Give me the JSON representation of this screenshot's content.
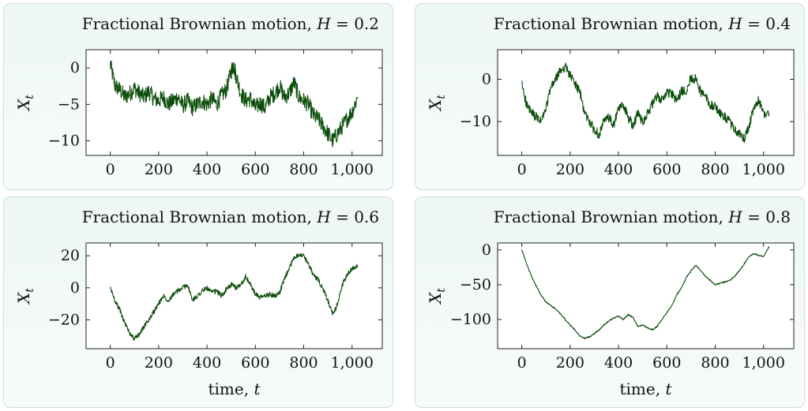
{
  "chart_data": [
    {
      "type": "line",
      "title": "Fractional Brownian motion, H = 0.2",
      "title_prefix": "Fractional Brownian motion, ",
      "title_var": "H",
      "title_eq": " = 0.2",
      "xlabel_text": "",
      "xlabel_var": "",
      "ylabel_base": "X",
      "ylabel_sub": "t",
      "xlim": [
        -100,
        1125
      ],
      "ylim": [
        -12,
        2.5
      ],
      "xticks": [
        0,
        200,
        400,
        600,
        800,
        1000
      ],
      "xtick_labels": [
        "0",
        "200",
        "400",
        "600",
        "800",
        "1,000"
      ],
      "yticks": [
        0,
        -5,
        -10
      ],
      "ytick_labels": [
        "0",
        "−5",
        "−10"
      ],
      "grid": false,
      "color": "#0b4d0b",
      "series": [
        {
          "x": [
            0,
            20,
            40,
            60,
            80,
            100,
            120,
            140,
            160,
            180,
            200,
            220,
            240,
            260,
            280,
            300,
            320,
            340,
            360,
            380,
            400,
            420,
            440,
            460,
            480,
            500,
            510,
            520,
            540,
            560,
            580,
            600,
            620,
            640,
            660,
            680,
            700,
            720,
            740,
            760,
            780,
            800,
            820,
            840,
            860,
            880,
            900,
            920,
            940,
            960,
            980,
            1000,
            1023
          ],
          "y": [
            0.5,
            -2.5,
            -3,
            -4,
            -3.5,
            -2.8,
            -3.5,
            -4,
            -3.2,
            -4.2,
            -4.5,
            -4,
            -5,
            -4.5,
            -4,
            -5.2,
            -4.5,
            -5.5,
            -5,
            -4.5,
            -5,
            -4.2,
            -5,
            -3.8,
            -3,
            -0.5,
            0.5,
            -1,
            -3.5,
            -4.5,
            -4.2,
            -5.5,
            -4.8,
            -5.5,
            -4,
            -3.5,
            -2.5,
            -4,
            -3.5,
            -2,
            -4,
            -4.5,
            -5,
            -6.5,
            -7,
            -8,
            -9,
            -10,
            -9,
            -8,
            -7,
            -6,
            -4
          ]
        }
      ]
    },
    {
      "type": "line",
      "title": "Fractional Brownian motion, H = 0.4",
      "title_prefix": "Fractional Brownian motion, ",
      "title_var": "H",
      "title_eq": " = 0.4",
      "xlabel_text": "",
      "xlabel_var": "",
      "ylabel_base": "X",
      "ylabel_sub": "t",
      "xlim": [
        -100,
        1125
      ],
      "ylim": [
        -18,
        7
      ],
      "xticks": [
        0,
        200,
        400,
        600,
        800,
        1000
      ],
      "xtick_labels": [
        "0",
        "200",
        "400",
        "600",
        "800",
        "1,000"
      ],
      "yticks": [
        0,
        -10
      ],
      "ytick_labels": [
        "0",
        "−10"
      ],
      "grid": false,
      "color": "#0b4d0b",
      "series": [
        {
          "x": [
            0,
            20,
            40,
            60,
            80,
            100,
            120,
            140,
            160,
            180,
            200,
            220,
            240,
            260,
            280,
            300,
            320,
            340,
            360,
            380,
            400,
            420,
            440,
            460,
            480,
            500,
            520,
            540,
            560,
            580,
            600,
            620,
            640,
            660,
            680,
            700,
            720,
            740,
            760,
            780,
            800,
            820,
            840,
            860,
            880,
            900,
            920,
            940,
            960,
            980,
            1000,
            1023
          ],
          "y": [
            -1,
            -6,
            -8,
            -9,
            -10,
            -7,
            -2,
            0,
            2,
            3,
            1,
            -1,
            -3,
            -8,
            -10,
            -12,
            -13,
            -10,
            -9,
            -11,
            -7,
            -6,
            -9,
            -11,
            -8,
            -10,
            -8,
            -6,
            -4,
            -5,
            -3,
            -3.5,
            -5,
            -3,
            -2.5,
            0.5,
            0,
            -3,
            -4,
            -6,
            -6.5,
            -8,
            -9,
            -10,
            -12,
            -13,
            -14,
            -11,
            -7,
            -5,
            -8,
            -8
          ]
        }
      ]
    },
    {
      "type": "line",
      "title": "Fractional Brownian motion, H = 0.6",
      "title_prefix": "Fractional Brownian motion, ",
      "title_var": "H",
      "title_eq": " = 0.6",
      "xlabel_text": "time, ",
      "xlabel_var": "t",
      "ylabel_base": "X",
      "ylabel_sub": "t",
      "xlim": [
        -100,
        1125
      ],
      "ylim": [
        -38,
        28
      ],
      "xticks": [
        0,
        200,
        400,
        600,
        800,
        1000
      ],
      "xtick_labels": [
        "0",
        "200",
        "400",
        "600",
        "800",
        "1,000"
      ],
      "yticks": [
        20,
        0,
        -20
      ],
      "ytick_labels": [
        "20",
        "0",
        "−20"
      ],
      "grid": false,
      "color": "#0b4d0b",
      "series": [
        {
          "x": [
            0,
            20,
            40,
            60,
            80,
            100,
            120,
            140,
            160,
            180,
            200,
            220,
            240,
            260,
            280,
            300,
            320,
            340,
            360,
            380,
            400,
            420,
            440,
            460,
            480,
            500,
            520,
            540,
            560,
            580,
            600,
            620,
            640,
            660,
            680,
            700,
            720,
            740,
            760,
            780,
            800,
            820,
            840,
            860,
            880,
            900,
            920,
            940,
            960,
            980,
            1000,
            1023
          ],
          "y": [
            0,
            -8,
            -14,
            -22,
            -28,
            -32,
            -29,
            -24,
            -20,
            -15,
            -10,
            -5,
            -8,
            -4,
            -2,
            0,
            2,
            -8,
            -5,
            -2,
            0,
            -3,
            -2,
            -5,
            -1,
            2,
            0,
            2,
            7,
            2,
            -4,
            -6,
            -5,
            -4,
            -5,
            -3,
            5,
            12,
            19,
            21,
            20,
            15,
            8,
            5,
            -1,
            -8,
            -17,
            -10,
            2,
            8,
            12,
            14
          ]
        }
      ]
    },
    {
      "type": "line",
      "title": "Fractional Brownian motion, H = 0.8",
      "title_prefix": "Fractional Brownian motion, ",
      "title_var": "H",
      "title_eq": " = 0.8",
      "xlabel_text": "time, ",
      "xlabel_var": "t",
      "ylabel_base": "X",
      "ylabel_sub": "t",
      "xlim": [
        -100,
        1125
      ],
      "ylim": [
        -142,
        10
      ],
      "xticks": [
        0,
        200,
        400,
        600,
        800,
        1000
      ],
      "xtick_labels": [
        "0",
        "200",
        "400",
        "600",
        "800",
        "1,000"
      ],
      "yticks": [
        0,
        -50,
        -100
      ],
      "ytick_labels": [
        "0",
        "−50",
        "−100"
      ],
      "grid": false,
      "color": "#0b4d0b",
      "series": [
        {
          "x": [
            0,
            20,
            40,
            60,
            80,
            100,
            120,
            140,
            160,
            180,
            200,
            220,
            240,
            260,
            280,
            300,
            320,
            340,
            360,
            380,
            400,
            420,
            440,
            460,
            480,
            500,
            520,
            540,
            560,
            580,
            600,
            620,
            640,
            660,
            680,
            700,
            720,
            740,
            760,
            780,
            800,
            820,
            840,
            860,
            880,
            900,
            920,
            940,
            960,
            980,
            1000,
            1023
          ],
          "y": [
            0,
            -20,
            -38,
            -52,
            -65,
            -75,
            -80,
            -85,
            -92,
            -100,
            -108,
            -115,
            -124,
            -127,
            -125,
            -120,
            -115,
            -108,
            -102,
            -98,
            -95,
            -100,
            -93,
            -97,
            -110,
            -108,
            -112,
            -115,
            -110,
            -100,
            -90,
            -80,
            -65,
            -55,
            -40,
            -30,
            -22,
            -30,
            -38,
            -44,
            -50,
            -48,
            -46,
            -44,
            -38,
            -30,
            -20,
            -10,
            -5,
            -8,
            -10,
            5
          ]
        }
      ]
    }
  ]
}
